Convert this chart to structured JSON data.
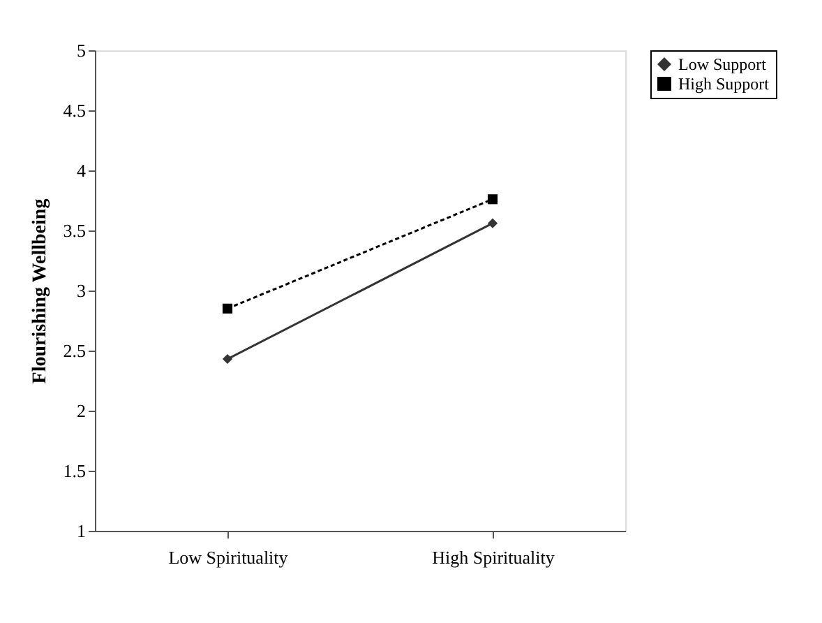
{
  "chart_data": {
    "type": "line",
    "ylabel": "Flourishing  Wellbeing",
    "categories": [
      "Low Spirituality",
      "High Spirituality"
    ],
    "series": [
      {
        "name": "Low Support",
        "color": "#333333",
        "values": [
          2.43,
          3.56
        ],
        "marker": "diamond",
        "line_style": "solid"
      },
      {
        "name": "High Support",
        "color": "#000000",
        "values": [
          2.85,
          3.76
        ],
        "marker": "square",
        "line_style": "dashed"
      }
    ],
    "ylim": [
      1,
      5
    ],
    "yticks": [
      1,
      1.5,
      2,
      2.5,
      3,
      3.5,
      4,
      4.5,
      5
    ],
    "grid": false,
    "legend": "right"
  }
}
